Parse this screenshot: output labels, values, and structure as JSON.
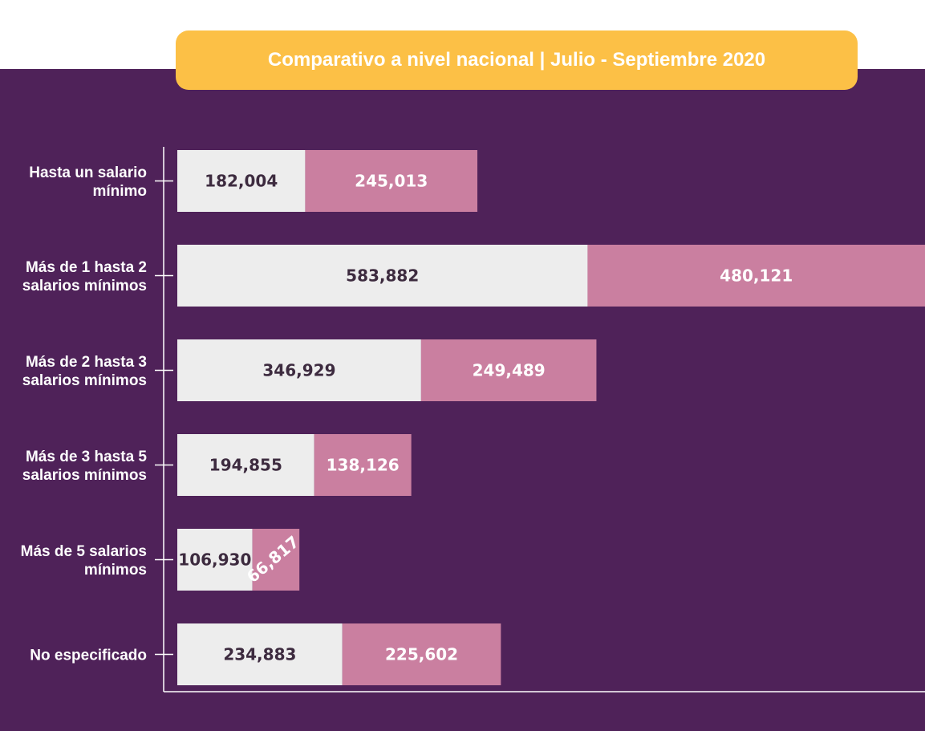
{
  "chart_data": {
    "type": "bar",
    "orientation": "horizontal",
    "stacked": true,
    "title": "Comparativo a nivel nacional | Julio - Septiembre 2020",
    "categories": [
      [
        "Hasta un salario",
        "mínimo"
      ],
      [
        "Más de 1 hasta 2",
        "salarios mínimos"
      ],
      [
        "Más de 2 hasta 3",
        "salarios mínimos"
      ],
      [
        "Más de 3 hasta 5",
        "salarios mínimos"
      ],
      [
        "Más de 5 salarios",
        "mínimos"
      ],
      [
        "No especificado"
      ]
    ],
    "series": [
      {
        "values": [
          182004,
          583882,
          346929,
          194855,
          106930,
          234883
        ],
        "labels": [
          "182,004",
          "583,882",
          "346,929",
          "194,855",
          "106,930",
          "234,883"
        ],
        "color": "#ededed",
        "label_color": "#3d2b3f"
      },
      {
        "values": [
          245013,
          480121,
          249489,
          138126,
          66817,
          225602
        ],
        "labels": [
          "245,013",
          "480,121",
          "249,489",
          "138,126",
          "66,817",
          "225,602"
        ],
        "color": "#ca7fa0",
        "label_color": "#ffffff"
      }
    ],
    "xlim": [
      0,
      1064003
    ],
    "grid": false,
    "legend": "none",
    "colors": {
      "background": "#4f2259",
      "banner": "#fcc046",
      "axis": "#ffffff"
    }
  }
}
